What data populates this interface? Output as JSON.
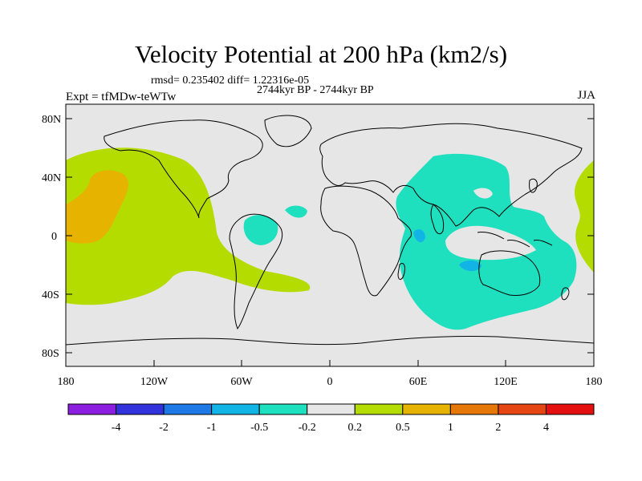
{
  "title": "Velocity Potential at 200 hPa (km2/s)",
  "subtitle": "rmsd= 0.235402 diff= 1.22316e-05",
  "center_label": "2744kyr BP - 2744kyr BP",
  "left_label": "Expt = tfMDw-teWTw",
  "right_label": "JJA",
  "map": {
    "lat_labels": [
      "80N",
      "40N",
      "0",
      "40S",
      "80S"
    ],
    "lon_labels": [
      "180",
      "120W",
      "60W",
      "0",
      "60E",
      "120E",
      "180"
    ],
    "background_color": "#e6e6e6",
    "coastline_color": "#000000"
  },
  "colorbar": {
    "colors": [
      "#8c1ee0",
      "#3232dc",
      "#1e78e6",
      "#12b4e6",
      "#1ee0be",
      "#e6e6e6",
      "#b4dc00",
      "#e6b400",
      "#e6780a",
      "#e64614",
      "#e60f0f"
    ],
    "labels": [
      "-4",
      "-2",
      "-1",
      "-0.5",
      "-0.2",
      "0.2",
      "0.5",
      "1",
      "2",
      "4"
    ]
  }
}
